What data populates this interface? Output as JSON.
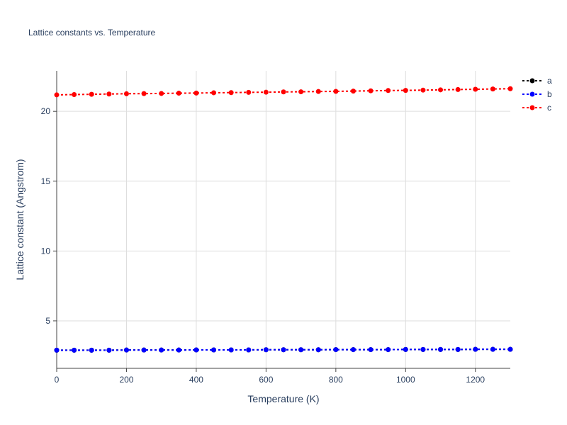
{
  "chart_data": {
    "type": "line",
    "title": "Lattice constants vs. Temperature",
    "xlabel": "Temperature (K)",
    "ylabel": "Lattice constant (Angstrom)",
    "xlim": [
      0,
      1300
    ],
    "ylim": [
      1.6,
      22.9
    ],
    "xticks": [
      0,
      200,
      400,
      600,
      800,
      1000,
      1200
    ],
    "yticks": [
      5,
      10,
      15,
      20
    ],
    "grid": true,
    "legend_position": "top-right",
    "x": [
      0,
      50,
      100,
      150,
      200,
      250,
      300,
      350,
      400,
      450,
      500,
      550,
      600,
      650,
      700,
      750,
      800,
      850,
      900,
      950,
      1000,
      1050,
      1100,
      1150,
      1200,
      1250,
      1300
    ],
    "series": [
      {
        "name": "a",
        "color": "#000000",
        "values": [
          2.9,
          2.9,
          2.9,
          2.9,
          2.91,
          2.91,
          2.91,
          2.91,
          2.92,
          2.92,
          2.92,
          2.92,
          2.93,
          2.93,
          2.93,
          2.93,
          2.94,
          2.94,
          2.94,
          2.94,
          2.95,
          2.95,
          2.95,
          2.95,
          2.96,
          2.96,
          2.96
        ]
      },
      {
        "name": "b",
        "color": "#0000ff",
        "values": [
          2.9,
          2.9,
          2.9,
          2.9,
          2.91,
          2.91,
          2.91,
          2.91,
          2.92,
          2.92,
          2.92,
          2.92,
          2.93,
          2.93,
          2.93,
          2.93,
          2.94,
          2.94,
          2.94,
          2.94,
          2.95,
          2.95,
          2.95,
          2.95,
          2.96,
          2.96,
          2.96
        ]
      },
      {
        "name": "c",
        "color": "#ff0000",
        "values": [
          21.18,
          21.2,
          21.22,
          21.24,
          21.26,
          21.27,
          21.28,
          21.3,
          21.31,
          21.33,
          21.34,
          21.36,
          21.37,
          21.39,
          21.4,
          21.42,
          21.43,
          21.45,
          21.47,
          21.49,
          21.5,
          21.52,
          21.54,
          21.56,
          21.58,
          21.6,
          21.62
        ]
      }
    ]
  }
}
